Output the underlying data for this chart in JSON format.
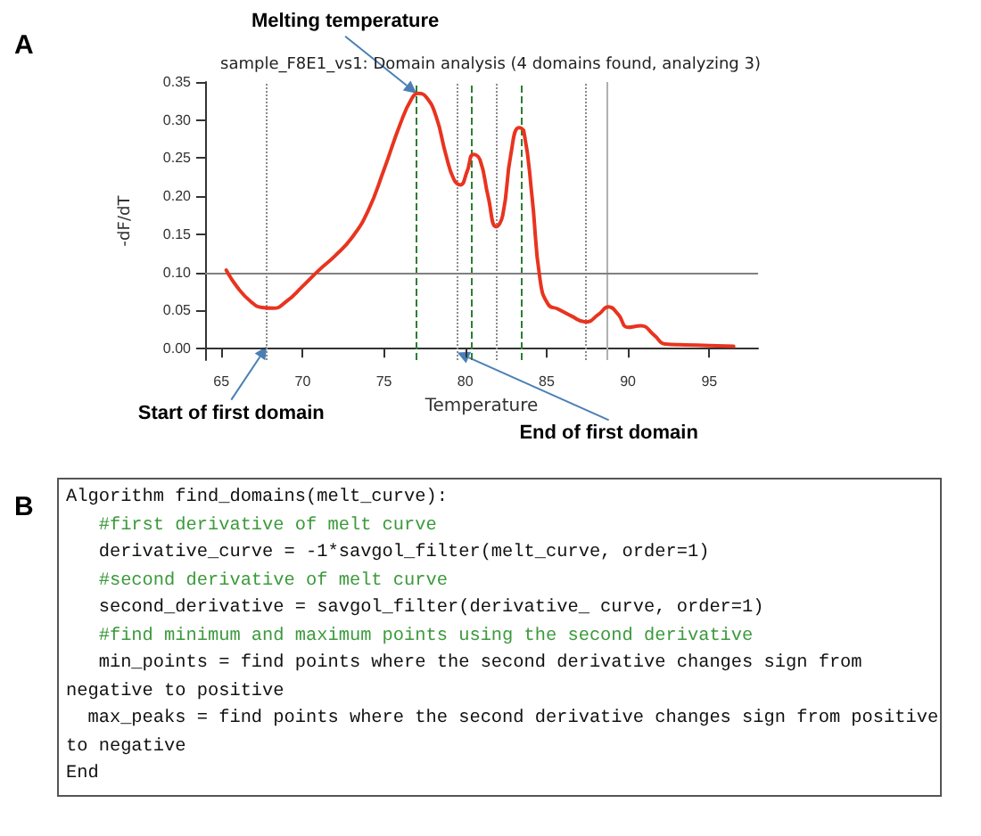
{
  "chart_data": [
    {
      "type": "line",
      "title": "sample_F8E1_vs1: Domain analysis (4 domains found, analyzing 3)",
      "xlabel": "Temperature",
      "ylabel": "-dF/dT",
      "x": [
        65.3,
        66,
        66.8,
        67.5,
        68.2,
        69,
        70,
        71,
        72,
        73,
        74,
        75,
        76,
        76.7,
        77.1,
        77.6,
        78.2,
        78.8,
        79.3,
        79.7,
        80.1,
        80.5,
        80.9,
        81.4,
        81.9,
        82.3,
        82.8,
        83.3,
        83.6,
        84.1,
        84.6,
        85.1,
        85.7,
        86.5,
        87.4,
        88.2,
        88.8,
        89.4,
        90,
        90.8,
        91.6,
        92.3,
        93.5,
        95,
        96.5
      ],
      "series": [
        {
          "color": "#e8341f",
          "values": [
            0.103,
            0.08,
            0.062,
            0.054,
            0.053,
            0.062,
            0.082,
            0.103,
            0.122,
            0.145,
            0.18,
            0.235,
            0.295,
            0.328,
            0.335,
            0.33,
            0.305,
            0.255,
            0.222,
            0.215,
            0.232,
            0.255,
            0.248,
            0.2,
            0.16,
            0.175,
            0.255,
            0.29,
            0.285,
            0.2,
            0.09,
            0.058,
            0.052,
            0.043,
            0.035,
            0.045,
            0.055,
            0.045,
            0.028,
            0.03,
            0.018,
            0.006,
            0.005,
            0.004,
            0.003
          ]
        }
      ],
      "xlim": [
        64,
        98
      ],
      "ylim": [
        -0.015,
        0.35
      ],
      "xticks": [
        65,
        70,
        75,
        80,
        85,
        90,
        95
      ],
      "yticks": [
        {
          "value": 0,
          "label": "0.00"
        },
        {
          "value": 0.05,
          "label": "0.05"
        },
        {
          "value": 0.1,
          "label": "0.10"
        },
        {
          "value": 0.15,
          "label": "0.15"
        },
        {
          "value": 0.2,
          "label": "0.20"
        },
        {
          "value": 0.25,
          "label": "0.25"
        },
        {
          "value": 0.3,
          "label": "0.30"
        },
        {
          "value": 0.35,
          "label": "0.35"
        }
      ],
      "grid": false,
      "marker": "none",
      "line_style": "solid",
      "ref_lines": [
        {
          "axis": "y",
          "value": 0.1,
          "color": "#808080",
          "line_style": "solid"
        },
        {
          "axis": "x",
          "value": 67.8,
          "color": "#8a8a8a",
          "line_style": "dotted"
        },
        {
          "axis": "x",
          "value": 77,
          "color": "#2e7d32",
          "line_style": "dashed"
        },
        {
          "axis": "x",
          "value": 79.5,
          "color": "#8a8a8a",
          "line_style": "dotted"
        },
        {
          "axis": "x",
          "value": 80.4,
          "color": "#2e7d32",
          "line_style": "dashed"
        },
        {
          "axis": "x",
          "value": 81.9,
          "color": "#8a8a8a",
          "line_style": "dotted"
        },
        {
          "axis": "x",
          "value": 83.4,
          "color": "#2e7d32",
          "line_style": "dashed"
        },
        {
          "axis": "x",
          "value": 87.4,
          "color": "#8a8a8a",
          "line_style": "dotted"
        },
        {
          "axis": "x",
          "value": 88.7,
          "color": "#b0b0b0",
          "line_style": "solid"
        }
      ],
      "annotations": [
        "A",
        {
          "text": "Melting temperature",
          "x": 77,
          "y": 0.335
        },
        {
          "text": "Start of first domain",
          "x": 67.8,
          "y": 0.003
        },
        {
          "text": "End of first domain",
          "x": 79.5,
          "y": -0.005
        }
      ]
    },
    {
      "type": "other",
      "annotations": [
        "B",
        "Algorithm find_domains(melt_curve):",
        "   #first derivative of melt curve",
        "   derivative_curve = -1*savgol_filter(melt_curve, order=1)",
        "   #second derivative of melt curve",
        "   second_derivative = savgol_filter(derivative_ curve, order=1)",
        "   #find minimum and maximum points using the second derivative",
        "   min_points = find points where the second derivative changes sign from",
        "negative to positive",
        "  max_peaks = find points where the second derivative changes sign from positive",
        "to negative",
        "End"
      ]
    }
  ]
}
